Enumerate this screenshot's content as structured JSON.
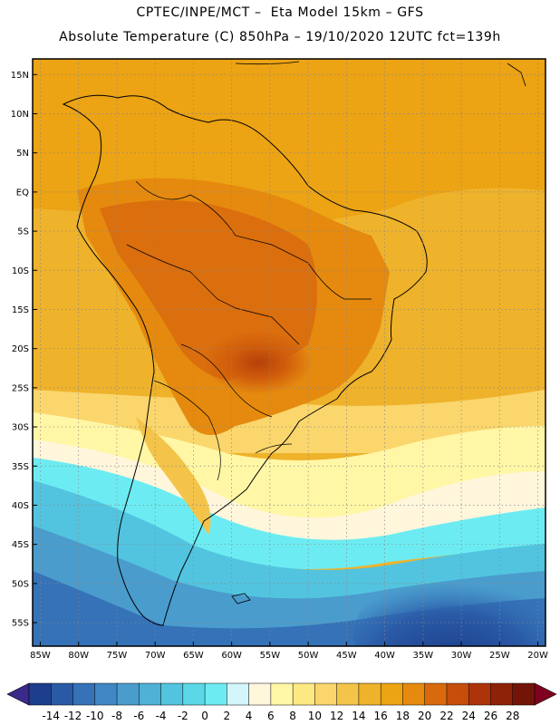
{
  "header": {
    "line1": "CPTEC/INPE/MCT –  Eta Model 15km – GFS",
    "line2": "Absolute Temperature (C) 850hPa – 19/10/2020 12UTC fct=139h"
  },
  "map": {
    "lon_range": [
      -86,
      -19
    ],
    "lat_range": [
      -58,
      17
    ],
    "lat_ticks": [
      {
        "value": 15,
        "label": "15N"
      },
      {
        "value": 10,
        "label": "10N"
      },
      {
        "value": 5,
        "label": "5N"
      },
      {
        "value": 0,
        "label": "EQ"
      },
      {
        "value": -5,
        "label": "5S"
      },
      {
        "value": -10,
        "label": "10S"
      },
      {
        "value": -15,
        "label": "15S"
      },
      {
        "value": -20,
        "label": "20S"
      },
      {
        "value": -25,
        "label": "25S"
      },
      {
        "value": -30,
        "label": "30S"
      },
      {
        "value": -35,
        "label": "35S"
      },
      {
        "value": -40,
        "label": "40S"
      },
      {
        "value": -45,
        "label": "45S"
      },
      {
        "value": -50,
        "label": "50S"
      },
      {
        "value": -55,
        "label": "55S"
      }
    ],
    "lon_ticks": [
      {
        "value": -85,
        "label": "85W"
      },
      {
        "value": -80,
        "label": "80W"
      },
      {
        "value": -75,
        "label": "75W"
      },
      {
        "value": -70,
        "label": "70W"
      },
      {
        "value": -65,
        "label": "65W"
      },
      {
        "value": -60,
        "label": "60W"
      },
      {
        "value": -55,
        "label": "55W"
      },
      {
        "value": -50,
        "label": "50W"
      },
      {
        "value": -45,
        "label": "45W"
      },
      {
        "value": -40,
        "label": "40W"
      },
      {
        "value": -35,
        "label": "35W"
      },
      {
        "value": -30,
        "label": "30W"
      },
      {
        "value": -25,
        "label": "25W"
      },
      {
        "value": -20,
        "label": "20W"
      }
    ]
  },
  "colorbar": {
    "labels": [
      "-14",
      "-12",
      "-10",
      "-8",
      "-6",
      "-4",
      "-2",
      "0",
      "2",
      "4",
      "6",
      "8",
      "10",
      "12",
      "14",
      "16",
      "18",
      "20",
      "22",
      "24",
      "26",
      "28"
    ],
    "colors": [
      "#1c3e8c",
      "#2a5aa6",
      "#3572b8",
      "#4087c4",
      "#4a9ccd",
      "#4fb1d6",
      "#52c4df",
      "#5ad8e8",
      "#6cecf2",
      "#d2f6fb",
      "#fff6dc",
      "#fff7a6",
      "#fde883",
      "#fad66c",
      "#f4c44a",
      "#efb22b",
      "#eca314",
      "#e58a0e",
      "#d9690d",
      "#c64d0c",
      "#ad340a",
      "#8e2208",
      "#721508"
    ],
    "low_arrow_color": "#3a2a8c",
    "high_arrow_color": "#800020"
  }
}
